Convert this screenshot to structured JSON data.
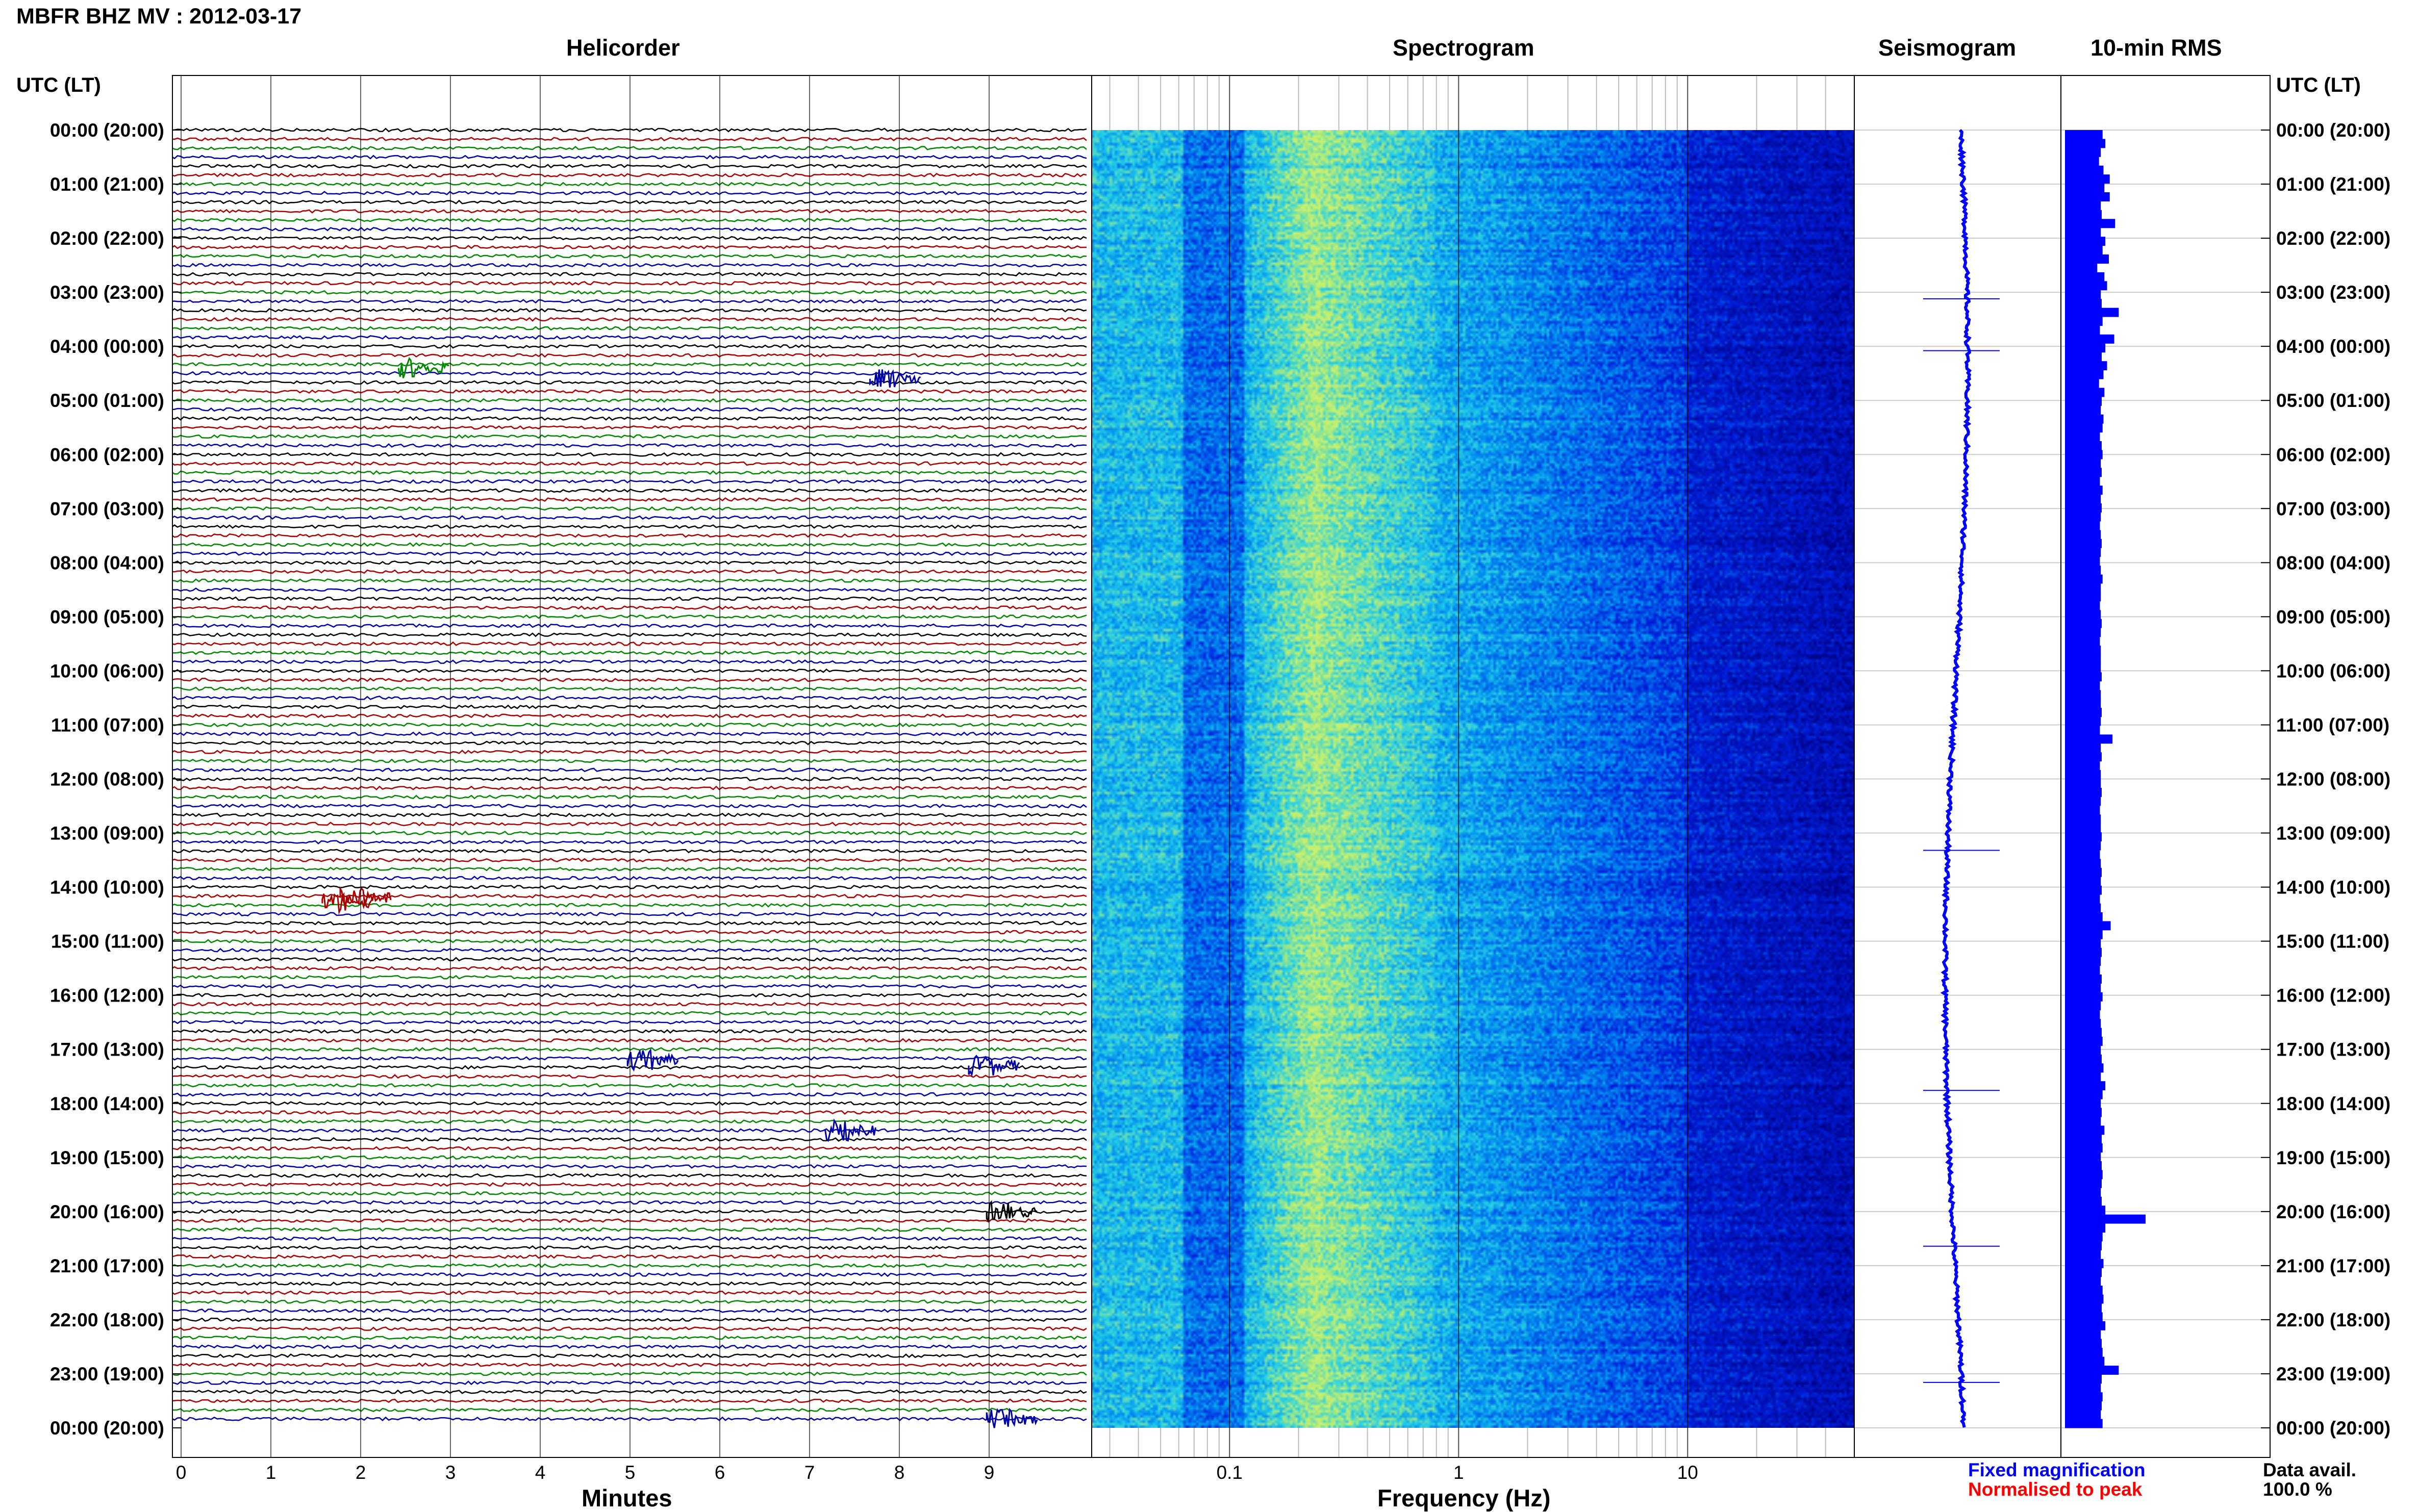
{
  "header": {
    "title": "MBFR BHZ MV : 2012-03-17",
    "time_axis_label_left": "UTC (LT)",
    "time_axis_label_right": "UTC (LT)"
  },
  "panels": {
    "helicorder": "Helicorder",
    "spectrogram": "Spectrogram",
    "seismogram": "Seismogram",
    "rms": "10-min RMS"
  },
  "axes": {
    "helicorder_xlabel": "Minutes",
    "spectrogram_xlabel": "Frequency (Hz)"
  },
  "legend": {
    "fixed": "Fixed magnification",
    "normalised": "Normalised to peak",
    "fixed_color": "#0000ff",
    "normalised_color": "#ff0000"
  },
  "data_availability": {
    "label": "Data avail.",
    "value": "100.0 %"
  },
  "colors": {
    "trace_colors": [
      "#000000",
      "#aa0000",
      "#008800",
      "#0000aa"
    ],
    "rms_bar": "#0000ff",
    "seismogram": "#0000ff"
  },
  "chart_data": {
    "type": "heatmap",
    "time_labels": [
      "00:00 (20:00)",
      "01:00 (21:00)",
      "02:00 (22:00)",
      "03:00 (23:00)",
      "04:00 (00:00)",
      "05:00 (01:00)",
      "06:00 (02:00)",
      "07:00 (03:00)",
      "08:00 (04:00)",
      "09:00 (05:00)",
      "10:00 (06:00)",
      "11:00 (07:00)",
      "12:00 (08:00)",
      "13:00 (09:00)",
      "14:00 (10:00)",
      "15:00 (11:00)",
      "16:00 (12:00)",
      "17:00 (13:00)",
      "18:00 (14:00)",
      "19:00 (15:00)",
      "20:00 (16:00)",
      "21:00 (17:00)",
      "22:00 (18:00)",
      "23:00 (19:00)",
      "00:00 (20:00)"
    ],
    "helicorder_minutes": [
      "0",
      "1",
      "2",
      "3",
      "4",
      "5",
      "6",
      "7",
      "8",
      "9"
    ],
    "helicorder_xlim": [
      0,
      10
    ],
    "spectrogram_freq_ticks": [
      "0.1",
      "1",
      "10"
    ],
    "spectrogram_xlim_hz": [
      0.025,
      50
    ],
    "spectrogram_xscale": "log",
    "rms_values_relative": [
      0.42,
      0.45,
      0.4,
      0.38,
      0.43,
      0.5,
      0.44,
      0.5,
      0.4,
      0.41,
      0.56,
      0.4,
      0.45,
      0.42,
      0.49,
      0.36,
      0.44,
      0.47,
      0.4,
      0.41,
      0.6,
      0.42,
      0.39,
      0.55,
      0.45,
      0.41,
      0.47,
      0.43,
      0.38,
      0.44,
      0.41,
      0.4,
      0.43,
      0.42,
      0.39,
      0.41,
      0.42,
      0.4,
      0.41,
      0.39,
      0.42,
      0.4,
      0.41,
      0.4,
      0.39,
      0.4,
      0.41,
      0.4,
      0.39,
      0.4,
      0.42,
      0.4,
      0.4,
      0.39,
      0.4,
      0.41,
      0.4,
      0.39,
      0.4,
      0.4,
      0.4,
      0.41,
      0.39,
      0.4,
      0.4,
      0.41,
      0.4,
      0.39,
      0.53,
      0.4,
      0.41,
      0.39,
      0.4,
      0.4,
      0.41,
      0.4,
      0.39,
      0.4,
      0.4,
      0.41,
      0.4,
      0.39,
      0.4,
      0.41,
      0.4,
      0.41,
      0.39,
      0.4,
      0.42,
      0.51,
      0.42,
      0.4,
      0.41,
      0.4,
      0.39,
      0.41,
      0.4,
      0.42,
      0.4,
      0.39,
      0.4,
      0.41,
      0.42,
      0.4,
      0.41,
      0.43,
      0.4,
      0.45,
      0.42,
      0.4,
      0.41,
      0.4,
      0.44,
      0.41,
      0.42,
      0.4,
      0.41,
      0.42,
      0.41,
      0.4,
      0.41,
      0.45,
      0.9,
      0.45,
      0.42,
      0.41,
      0.4,
      0.43,
      0.41,
      0.4,
      0.42,
      0.43,
      0.41,
      0.42,
      0.45,
      0.4,
      0.41,
      0.42,
      0.44,
      0.6,
      0.41,
      0.4,
      0.42,
      0.41,
      0.4,
      0.42
    ]
  }
}
